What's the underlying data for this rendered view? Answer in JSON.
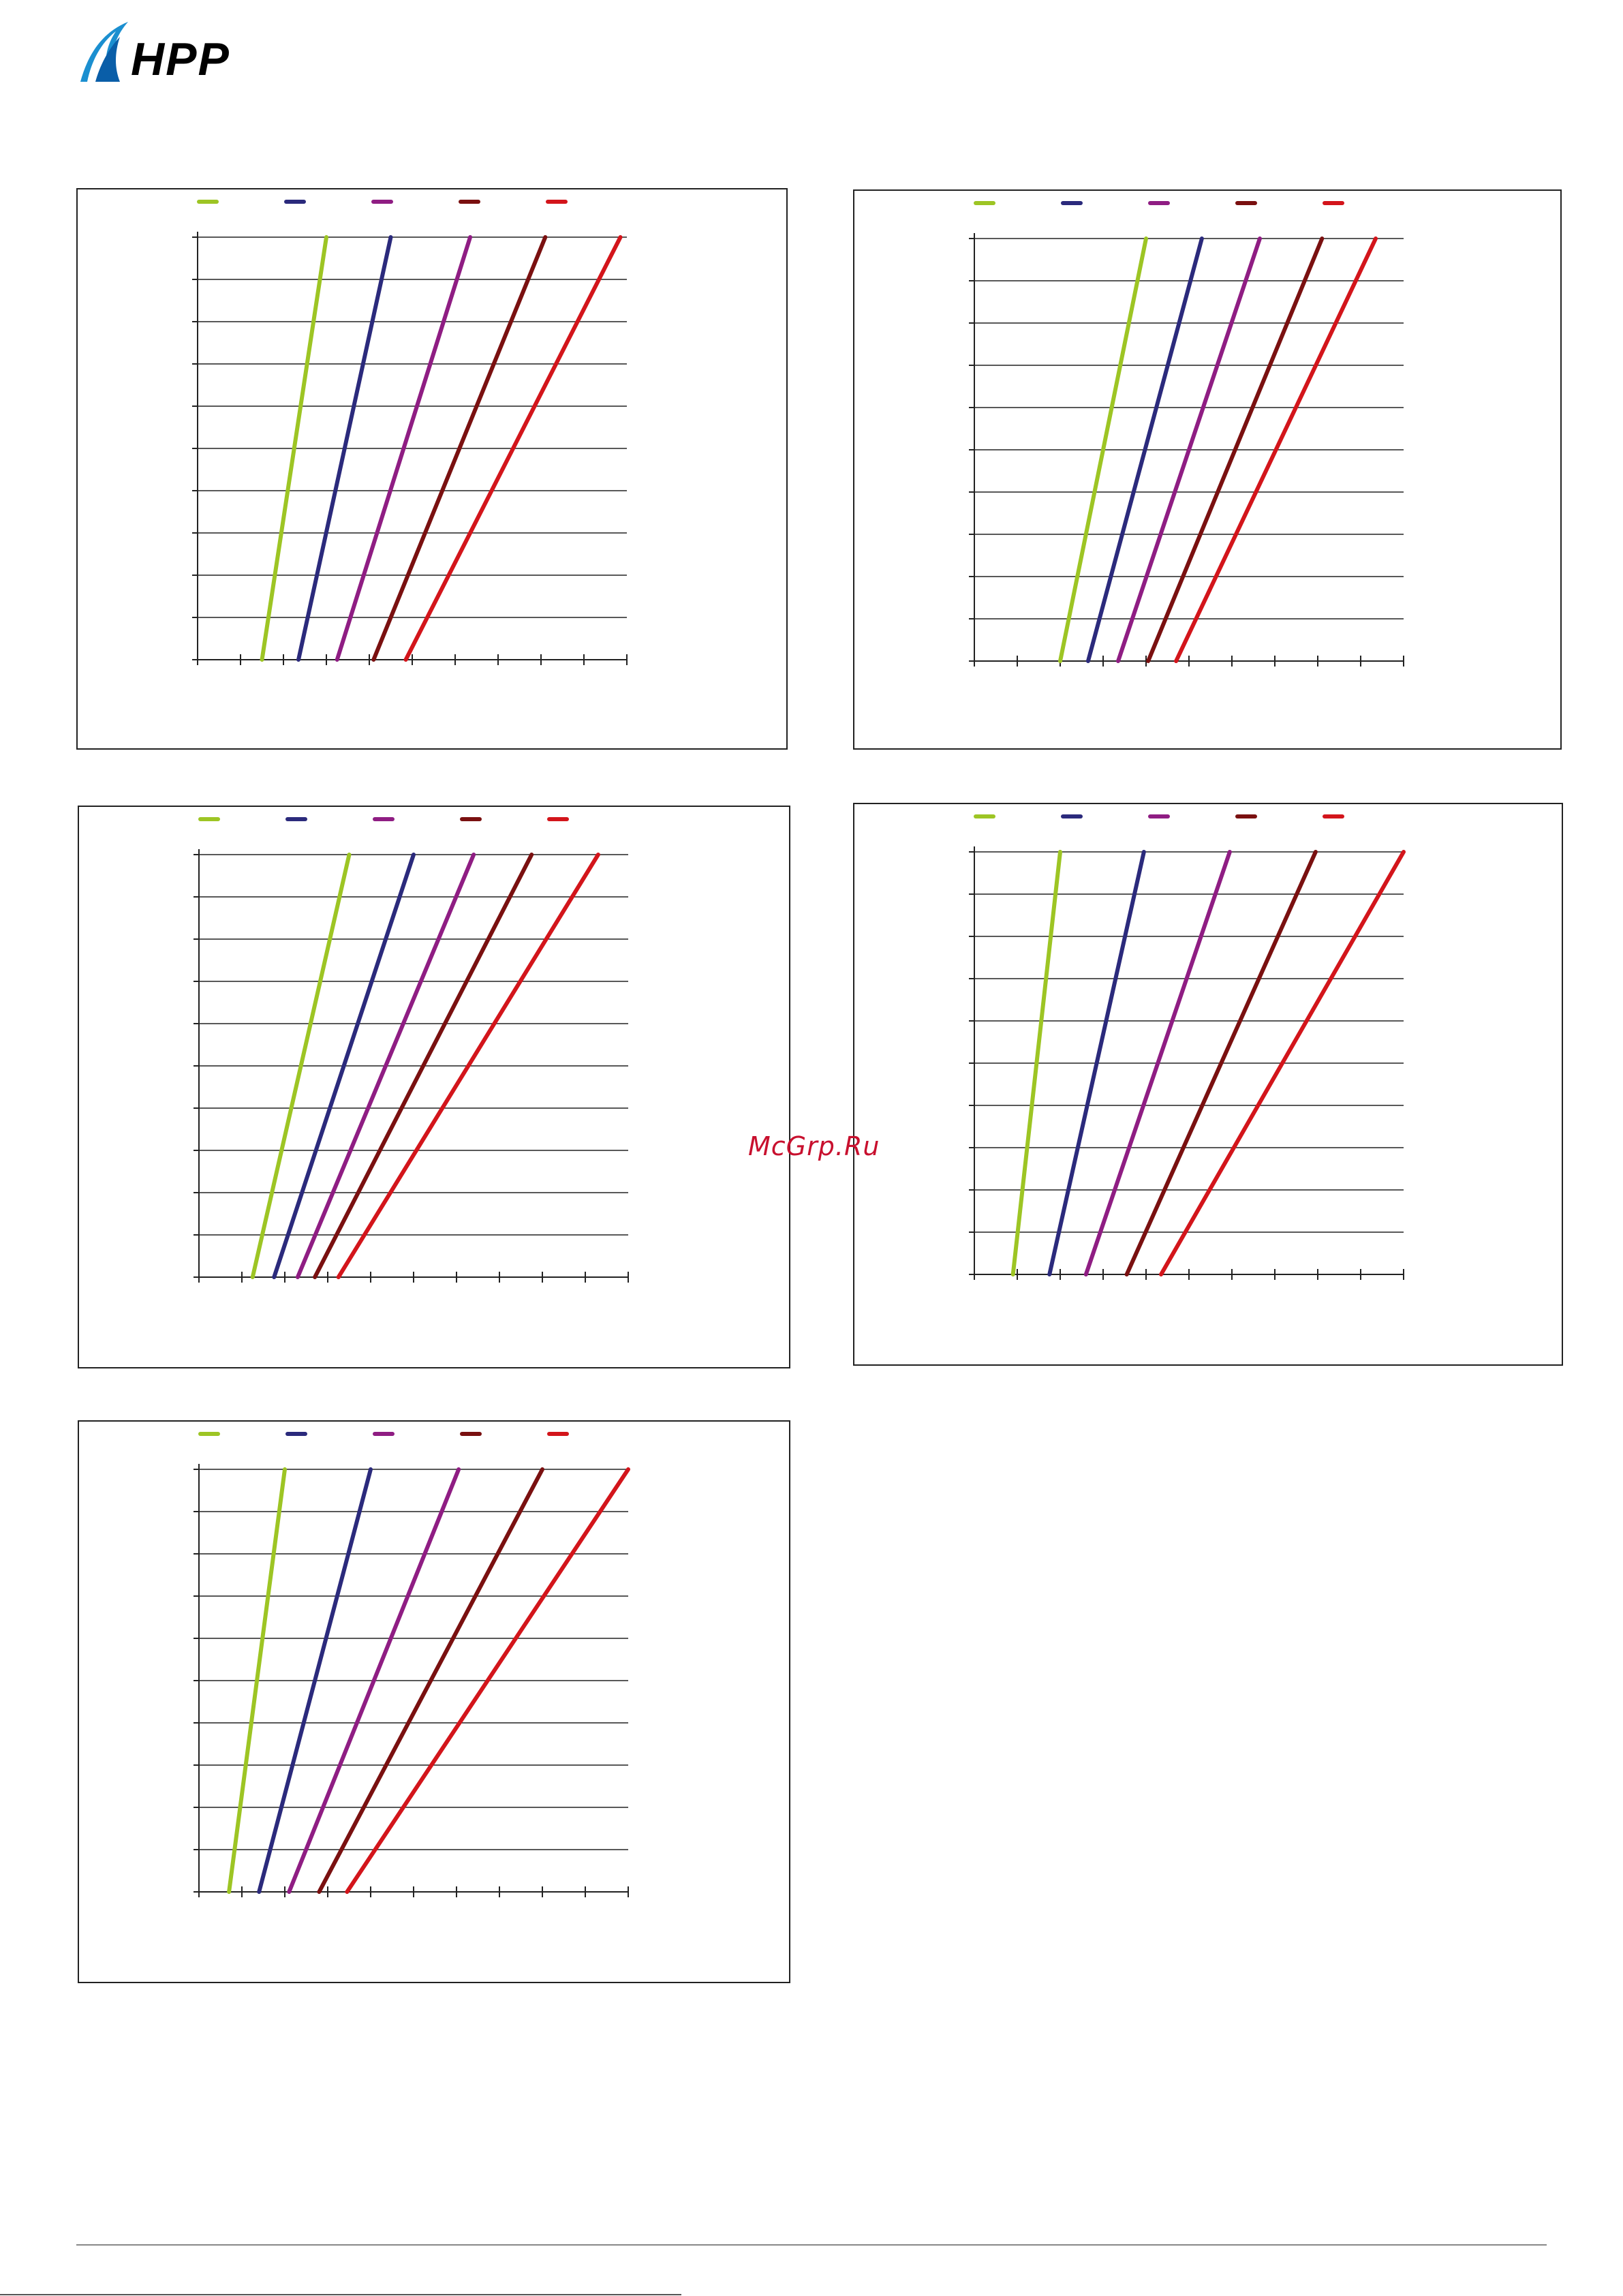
{
  "brand": {
    "logo_text": "HPP",
    "watermark": "McGrp.Ru"
  },
  "colors": {
    "series": [
      "#9dc524",
      "#2b2a7c",
      "#8f1d83",
      "#7a1010",
      "#d3151b"
    ],
    "axis": "#222222",
    "grid": "#222222",
    "watermark": "#c8102e"
  },
  "chart_data": [
    {
      "type": "line",
      "xlim": [
        0,
        10
      ],
      "ylim": [
        0,
        10
      ],
      "grid": "horizontal",
      "legend": "top",
      "series": [
        {
          "x": [
            1.5,
            3.0
          ],
          "y": [
            0,
            10
          ]
        },
        {
          "x": [
            2.35,
            4.5
          ],
          "y": [
            0,
            10
          ]
        },
        {
          "x": [
            3.25,
            6.35
          ],
          "y": [
            0,
            10
          ]
        },
        {
          "x": [
            4.1,
            8.1
          ],
          "y": [
            0,
            10
          ]
        },
        {
          "x": [
            4.85,
            9.85
          ],
          "y": [
            0,
            10
          ]
        }
      ]
    },
    {
      "type": "line",
      "xlim": [
        0,
        10
      ],
      "ylim": [
        0,
        10
      ],
      "grid": "horizontal",
      "legend": "top",
      "series": [
        {
          "x": [
            2.0,
            4.0
          ],
          "y": [
            0,
            10
          ]
        },
        {
          "x": [
            2.65,
            5.3
          ],
          "y": [
            0,
            10
          ]
        },
        {
          "x": [
            3.35,
            6.65
          ],
          "y": [
            0,
            10
          ]
        },
        {
          "x": [
            4.05,
            8.1
          ],
          "y": [
            0,
            10
          ]
        },
        {
          "x": [
            4.7,
            9.35
          ],
          "y": [
            0,
            10
          ]
        }
      ]
    },
    {
      "type": "line",
      "xlim": [
        0,
        10
      ],
      "ylim": [
        0,
        10
      ],
      "grid": "horizontal",
      "legend": "top",
      "series": [
        {
          "x": [
            1.25,
            3.5
          ],
          "y": [
            0,
            10
          ]
        },
        {
          "x": [
            1.75,
            5.0
          ],
          "y": [
            0,
            10
          ]
        },
        {
          "x": [
            2.3,
            6.4
          ],
          "y": [
            0,
            10
          ]
        },
        {
          "x": [
            2.7,
            7.75
          ],
          "y": [
            0,
            10
          ]
        },
        {
          "x": [
            3.25,
            9.3
          ],
          "y": [
            0,
            10
          ]
        }
      ]
    },
    {
      "type": "line",
      "xlim": [
        0,
        10
      ],
      "ylim": [
        0,
        10
      ],
      "grid": "horizontal",
      "legend": "top",
      "series": [
        {
          "x": [
            0.9,
            2.0
          ],
          "y": [
            0,
            10
          ]
        },
        {
          "x": [
            1.75,
            3.95
          ],
          "y": [
            0,
            10
          ]
        },
        {
          "x": [
            2.6,
            5.95
          ],
          "y": [
            0,
            10
          ]
        },
        {
          "x": [
            3.55,
            7.95
          ],
          "y": [
            0,
            10
          ]
        },
        {
          "x": [
            4.35,
            10.0
          ],
          "y": [
            0,
            10
          ]
        }
      ]
    },
    {
      "type": "line",
      "xlim": [
        0,
        10
      ],
      "ylim": [
        0,
        10
      ],
      "grid": "horizontal",
      "legend": "top",
      "series": [
        {
          "x": [
            0.7,
            2.0
          ],
          "y": [
            0,
            10
          ]
        },
        {
          "x": [
            1.4,
            4.0
          ],
          "y": [
            0,
            10
          ]
        },
        {
          "x": [
            2.1,
            6.05
          ],
          "y": [
            0,
            10
          ]
        },
        {
          "x": [
            2.8,
            8.0
          ],
          "y": [
            0,
            10
          ]
        },
        {
          "x": [
            3.45,
            10.0
          ],
          "y": [
            0,
            10
          ]
        }
      ]
    }
  ]
}
